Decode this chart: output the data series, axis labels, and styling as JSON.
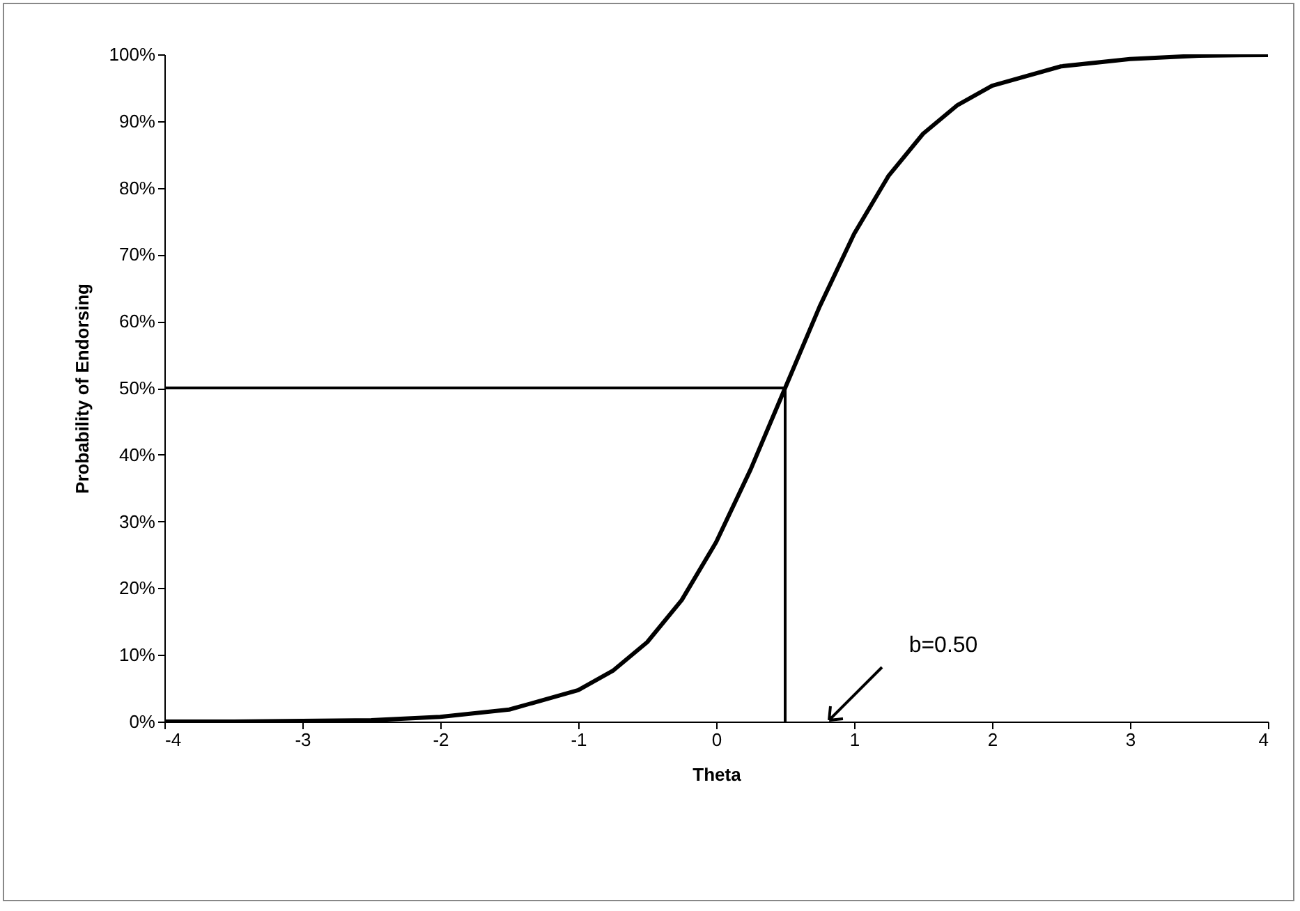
{
  "chart_data": {
    "type": "line",
    "xlabel": "Theta",
    "ylabel": "Probability of Endorsing",
    "xlim": [
      -4,
      4
    ],
    "xticks": [
      -4,
      -3,
      -2,
      -1,
      0,
      1,
      2,
      3,
      4
    ],
    "ylim": [
      0,
      100
    ],
    "yticks": [
      {
        "value": 0,
        "label": "0%"
      },
      {
        "value": 10,
        "label": "10%"
      },
      {
        "value": 20,
        "label": "20%"
      },
      {
        "value": 30,
        "label": "30%"
      },
      {
        "value": 40,
        "label": "40%"
      },
      {
        "value": 50,
        "label": "50%"
      },
      {
        "value": 60,
        "label": "60%"
      },
      {
        "value": 70,
        "label": "70%"
      },
      {
        "value": 80,
        "label": "80%"
      },
      {
        "value": 90,
        "label": "90%"
      },
      {
        "value": 100,
        "label": "100%"
      }
    ],
    "marker": "none",
    "line_style": "solid",
    "series": [
      {
        "color": "#000000",
        "x": [
          -4,
          -3.5,
          -3,
          -2.5,
          -2,
          -1.5,
          -1,
          -0.75,
          -0.5,
          -0.25,
          0,
          0.25,
          0.5,
          0.75,
          1,
          1.25,
          1.5,
          1.75,
          2,
          2.5,
          3,
          3.5,
          4
        ],
        "values": [
          0,
          0,
          0.1,
          0.2,
          0.7,
          1.8,
          4.7,
          7.6,
          11.9,
          18.2,
          26.9,
          37.8,
          50,
          62.2,
          73.1,
          81.8,
          88.1,
          92.4,
          95.3,
          98.2,
          99.3,
          99.8,
          99.9
        ]
      },
      {
        "color": "#000000",
        "x": [
          -4,
          0.5
        ],
        "values": [
          50,
          50
        ]
      },
      {
        "color": "#000000",
        "x": [
          0.5,
          0.5
        ],
        "values": [
          0,
          50
        ]
      }
    ],
    "annotations": [
      "b=0.50"
    ]
  }
}
